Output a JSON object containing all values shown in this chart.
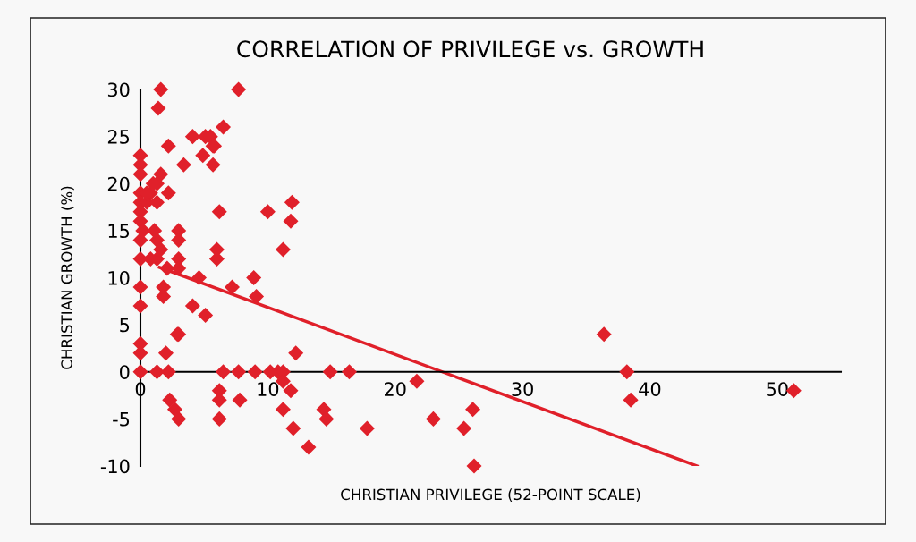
{
  "chart_data": {
    "type": "scatter",
    "title": "CORRELATION OF PRIVILEGE vs. GROWTH",
    "xlabel": "CHRISTIAN PRIVILEGE (52-POINT SCALE)",
    "ylabel": "CHRISTIAN GROWTH (%)",
    "xlim": [
      0,
      55
    ],
    "ylim": [
      -10,
      30
    ],
    "xticks": [
      0,
      10,
      20,
      30,
      40,
      50
    ],
    "yticks": [
      -10,
      -5,
      0,
      5,
      10,
      15,
      20,
      25,
      30
    ],
    "marker": "diamond",
    "grid": false,
    "legend": false,
    "series": [
      {
        "color": "#e0202a",
        "x": [
          0,
          0,
          0,
          0,
          0,
          0,
          0,
          0,
          0,
          0,
          0,
          0,
          0,
          0,
          0.2,
          0.5,
          1.6,
          7.7,
          1.4,
          6.5,
          4.1,
          5.1,
          5.5,
          5.7,
          2.2,
          5.8,
          4.9,
          3.4,
          5.7,
          1.6,
          1.3,
          0.8,
          0.5,
          1.0,
          2.2,
          1.3,
          6.2,
          10.0,
          11.9,
          11.8,
          1.1,
          1.3,
          1.6,
          1.3,
          3.0,
          3.0,
          3.0,
          0.8,
          2.1,
          11.2,
          6.0,
          6.0,
          3.0,
          4.6,
          8.9,
          1.8,
          1.8,
          7.2,
          9.1,
          4.1,
          5.1,
          2.9,
          3.0,
          12.2,
          2.0,
          1.3,
          2.2,
          6.5,
          7.7,
          9.0,
          10.2,
          10.8,
          11.2,
          14.9,
          16.4,
          6.2,
          6.2,
          7.8,
          2.3,
          2.7,
          3.0,
          6.2,
          11.2,
          11.8,
          11.2,
          12.0,
          13.2,
          14.4,
          14.6,
          17.8,
          21.7,
          23.0,
          25.4,
          26.1,
          26.2,
          36.4,
          38.2,
          38.5,
          51.3
        ],
        "values": [
          23,
          22,
          21,
          19,
          18,
          17,
          16,
          14,
          12,
          9,
          7,
          3,
          2,
          0,
          15,
          18,
          30,
          30,
          28,
          26,
          25,
          25,
          25,
          24,
          24,
          24,
          23,
          22,
          22,
          21,
          20,
          19,
          19,
          20,
          19,
          18,
          17,
          17,
          18,
          16,
          15,
          14,
          13,
          12,
          15,
          14,
          12,
          12,
          11,
          13,
          13,
          12,
          11,
          10,
          10,
          9,
          8,
          9,
          8,
          7,
          6,
          4,
          4,
          2,
          2,
          0,
          0,
          0,
          0,
          0,
          0,
          0,
          0,
          0,
          0,
          -2,
          -3,
          -3,
          -3,
          -4,
          -5,
          -5,
          -1,
          -2,
          -4,
          -6,
          -8,
          -4,
          -5,
          -6,
          -1,
          -5,
          -6,
          -4,
          -10,
          4,
          0,
          -3,
          -2
        ]
      },
      {
        "type": "line",
        "marker": "none",
        "color": "#e0202a",
        "x": [
          1.5,
          43.7
        ],
        "values": [
          11.1,
          -10.0
        ]
      }
    ]
  }
}
